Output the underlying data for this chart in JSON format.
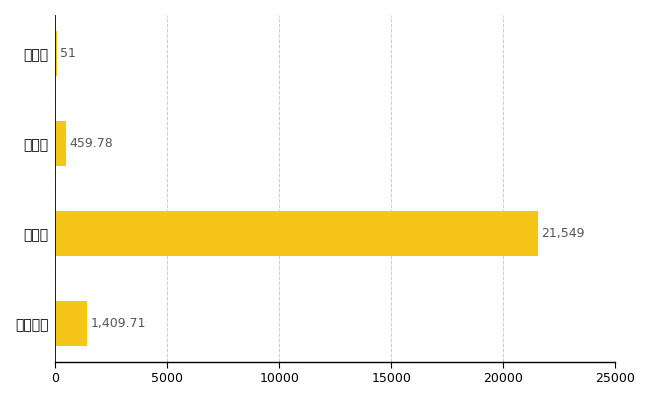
{
  "categories": [
    "全国平均",
    "県最大",
    "県平均",
    "興部町"
  ],
  "values": [
    1409.71,
    21549,
    459.78,
    51
  ],
  "bar_color": "#F5C518",
  "labels": [
    "1,409.71",
    "21,549",
    "459.78",
    "51"
  ],
  "xlim": [
    0,
    25000
  ],
  "xticks": [
    0,
    5000,
    10000,
    15000,
    20000,
    25000
  ],
  "xtick_labels": [
    "0",
    "5000",
    "10000",
    "15000",
    "20000",
    "25000"
  ],
  "background_color": "#ffffff",
  "grid_color": "#cccccc",
  "label_color": "#888888",
  "value_label_color": "#555555",
  "label_fontsize": 10,
  "tick_fontsize": 9,
  "value_label_fontsize": 9,
  "bar_height": 0.5,
  "figsize": [
    6.5,
    4.0
  ],
  "dpi": 100
}
